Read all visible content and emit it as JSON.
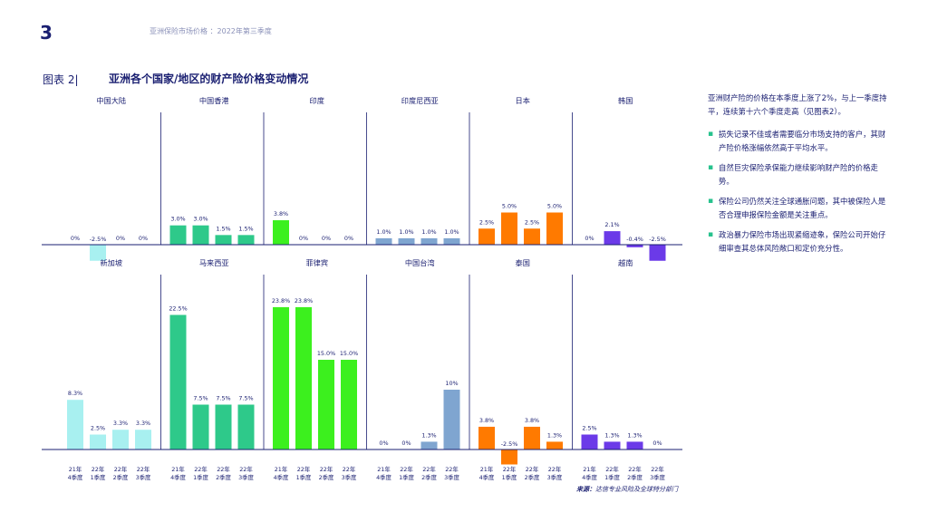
{
  "page": {
    "number": "3",
    "header": "亚洲保险市场价格 ：2022年第三季度",
    "figure_label": "图表 2|",
    "figure_title": "亚洲各个国家/地区的财产险价格变动情况",
    "source_label": "来源：",
    "source_text": "达信专业风险及全球特分部门"
  },
  "side_panel": {
    "intro": "亚洲财产险的价格在本季度上涨了2%，与上一季度持平，连续第十六个季度走高（见图表2）。",
    "bullets": [
      "损失记录不佳或者需要临分市场支持的客户，其财产险价格涨幅依然高于平均水平。",
      "自然巨灾保险承保能力继续影响财产险的价格走势。",
      "保险公司仍然关注全球通胀问题，其中被保险人是否合理申报保险金额是关注重点。",
      "政治暴力保险市场出现紧缩迹象，保险公司开始仔细审查其总体风险敞口和定价充分性。"
    ]
  },
  "chart_data": {
    "type": "bar",
    "categories": [
      [
        "21年",
        "4季度"
      ],
      [
        "22年",
        "1季度"
      ],
      [
        "22年",
        "2季度"
      ],
      [
        "22年",
        "3季度"
      ]
    ],
    "panels": [
      {
        "name": "中国大陆",
        "color": "#a8f0f0",
        "values": [
          0,
          -2.5,
          0,
          0
        ],
        "labels": [
          "0%",
          "-2.5%",
          "0%",
          "0%"
        ]
      },
      {
        "name": "中国香港",
        "color": "#2ec98a",
        "values": [
          3.0,
          3.0,
          1.5,
          1.5
        ],
        "labels": [
          "3.0%",
          "3.0%",
          "1.5%",
          "1.5%"
        ]
      },
      {
        "name": "印度",
        "color": "#3cf01e",
        "values": [
          3.8,
          0,
          0,
          0
        ],
        "labels": [
          "3.8%",
          "0%",
          "0%",
          "0%"
        ]
      },
      {
        "name": "印度尼西亚",
        "color": "#7fa5d0",
        "values": [
          1.0,
          1.0,
          1.0,
          1.0
        ],
        "labels": [
          "1.0%",
          "1.0%",
          "1.0%",
          "1.0%"
        ]
      },
      {
        "name": "日本",
        "color": "#ff7a00",
        "values": [
          2.5,
          5.0,
          2.5,
          5.0
        ],
        "labels": [
          "2.5%",
          "5.0%",
          "2.5%",
          "5.0%"
        ]
      },
      {
        "name": "韩国",
        "color": "#6b3ae8",
        "values": [
          0,
          2.1,
          -0.4,
          -2.5
        ],
        "labels": [
          "0%",
          "2.1%",
          "-0.4%",
          "-2.5%"
        ]
      },
      {
        "name": "新加坡",
        "color": "#a8f0f0",
        "values": [
          8.3,
          2.5,
          3.3,
          3.3
        ],
        "labels": [
          "8.3%",
          "2.5%",
          "3.3%",
          "3.3%"
        ]
      },
      {
        "name": "马来西亚",
        "color": "#2ec98a",
        "values": [
          22.5,
          7.5,
          7.5,
          7.5
        ],
        "labels": [
          "22.5%",
          "7.5%",
          "7.5%",
          "7.5%"
        ]
      },
      {
        "name": "菲律宾",
        "color": "#3cf01e",
        "values": [
          23.8,
          23.8,
          15.0,
          15.0
        ],
        "labels": [
          "23.8%",
          "23.8%",
          "15.0%",
          "15.0%"
        ]
      },
      {
        "name": "中国台湾",
        "color": "#7fa5d0",
        "values": [
          0,
          0,
          1.3,
          10
        ],
        "labels": [
          "0%",
          "0%",
          "1.3%",
          "10%"
        ]
      },
      {
        "name": "泰国",
        "color": "#ff7a00",
        "values": [
          3.8,
          -2.5,
          3.8,
          1.3
        ],
        "labels": [
          "3.8%",
          "-2.5%",
          "3.8%",
          "1.3%"
        ]
      },
      {
        "name": "越南",
        "color": "#6b3ae8",
        "values": [
          2.5,
          1.3,
          1.3,
          0
        ],
        "labels": [
          "2.5%",
          "1.3%",
          "1.3%",
          "0%"
        ]
      }
    ],
    "rows": [
      {
        "ylim": [
          -4.5,
          6
        ]
      },
      {
        "ylim": [
          -4,
          26
        ]
      }
    ]
  }
}
